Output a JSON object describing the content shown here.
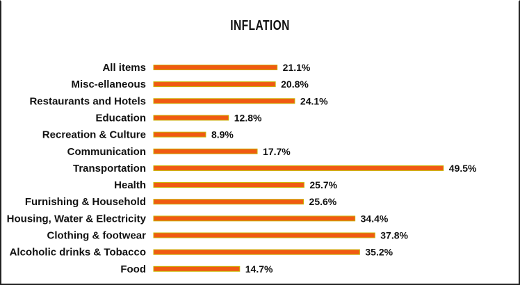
{
  "chart_data": {
    "type": "bar",
    "orientation": "horizontal",
    "title": "INFLATION",
    "categories": [
      "All items",
      "Misc-ellaneous",
      "Restaurants and Hotels",
      "Education",
      "Recreation & Culture",
      "Communication",
      "Transportation",
      "Health",
      "Furnishing & Household",
      "Housing, Water & Electricity",
      "Clothing & footwear",
      "Alcoholic drinks & Tobacco",
      "Food"
    ],
    "values": [
      21.1,
      20.8,
      24.1,
      12.8,
      8.9,
      17.7,
      49.5,
      25.7,
      25.6,
      34.4,
      37.8,
      35.2,
      14.7
    ],
    "value_labels": [
      "21.1%",
      "20.8%",
      "24.1%",
      "12.8%",
      "8.9%",
      "17.7%",
      "49.5%",
      "25.7%",
      "25.6%",
      "34.4%",
      "37.8%",
      "35.2%",
      "14.7%"
    ],
    "bar_color": "#f05a12",
    "bar_edge_color": "#c9b400",
    "xlim": [
      0,
      50
    ],
    "grid": false,
    "legend": "none"
  }
}
